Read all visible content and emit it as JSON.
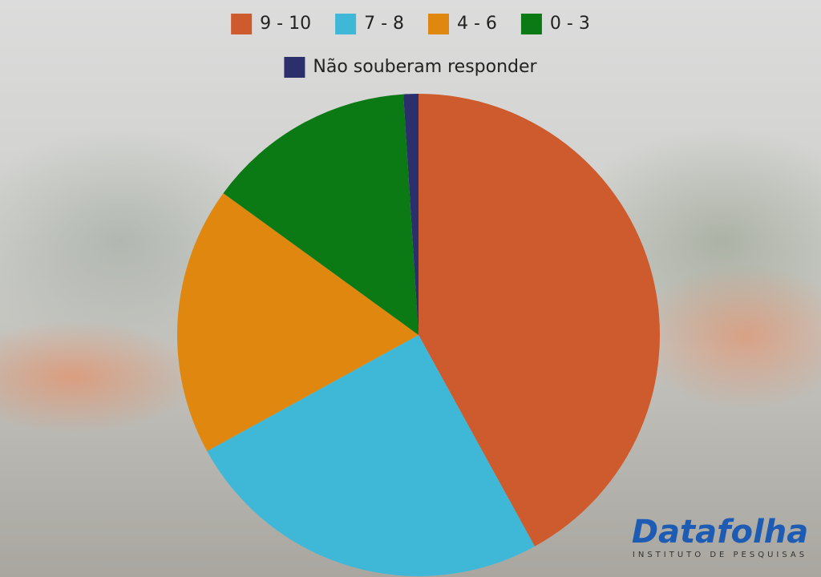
{
  "chart_data": {
    "type": "pie",
    "categories": [
      "9 - 10",
      "7 - 8",
      "4 - 6",
      "0 - 3",
      "Não souberam responder"
    ],
    "values": [
      42,
      25,
      18,
      14,
      1
    ],
    "colors": [
      "#cd5b2d",
      "#3fb8d8",
      "#e0870f",
      "#0b7a14",
      "#2b2f6c"
    ],
    "legend": "top"
  },
  "branding": {
    "name": "Datafolha",
    "tagline": "INSTITUTO DE PESQUISAS"
  }
}
